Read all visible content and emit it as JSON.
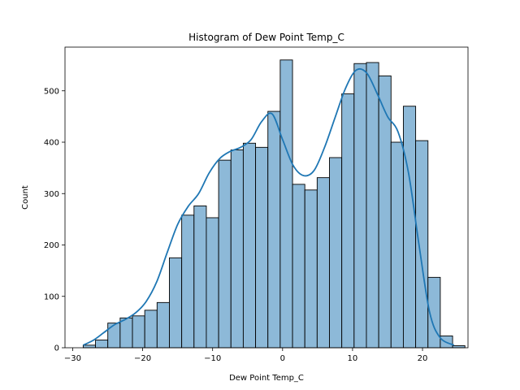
{
  "chart_data": {
    "type": "bar",
    "title": "Histogram of Dew Point Temp_C",
    "xlabel": "Dew Point Temp_C",
    "ylabel": "Count",
    "xlim": [
      -31.1,
      26.5
    ],
    "ylim": [
      0,
      585
    ],
    "xticks": [
      -30,
      -20,
      -10,
      0,
      10,
      20
    ],
    "yticks": [
      0,
      100,
      200,
      300,
      400,
      500
    ],
    "bin_start": -28.5,
    "bin_width": 1.76,
    "counts": [
      5,
      15,
      48,
      58,
      62,
      73,
      88,
      175,
      258,
      276,
      253,
      365,
      385,
      398,
      390,
      460,
      560,
      318,
      307,
      331,
      370,
      494,
      553,
      555,
      529,
      400,
      470,
      403,
      137,
      23,
      4
    ],
    "kde": {
      "x": [
        -28.5,
        -27,
        -25.5,
        -24,
        -22.5,
        -21,
        -19.5,
        -18,
        -16.5,
        -15,
        -13.5,
        -12,
        -10.5,
        -9,
        -7.5,
        -6,
        -4.5,
        -3,
        -1.5,
        0,
        1.5,
        3,
        4.5,
        6,
        7.5,
        9,
        10.5,
        12,
        13.5,
        15,
        16.5,
        18,
        19.5,
        21,
        22.5,
        24.5
      ],
      "y": [
        5,
        15,
        30,
        45,
        55,
        68,
        90,
        128,
        185,
        240,
        275,
        300,
        340,
        368,
        382,
        390,
        405,
        440,
        455,
        405,
        355,
        335,
        345,
        390,
        448,
        505,
        540,
        535,
        495,
        450,
        420,
        340,
        200,
        70,
        20,
        5
      ]
    },
    "bar_color": "#8db9d8",
    "line_color": "#1f77b4"
  }
}
